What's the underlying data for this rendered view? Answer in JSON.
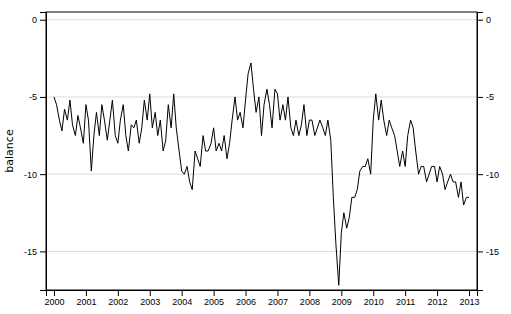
{
  "chart_data": {
    "type": "line",
    "ylabel": "balance",
    "color": "#000000",
    "grid": true,
    "xlim": [
      1999.75,
      2013.25
    ],
    "ylim": [
      -17.5,
      0.5
    ],
    "xticks": [
      2000,
      2001,
      2002,
      2003,
      2004,
      2005,
      2006,
      2007,
      2008,
      2009,
      2010,
      2011,
      2012,
      2013
    ],
    "yticks": [
      0,
      -5,
      -10,
      -15
    ],
    "x": [
      2000.0,
      2000.08,
      2000.17,
      2000.25,
      2000.33,
      2000.42,
      2000.5,
      2000.58,
      2000.67,
      2000.75,
      2000.83,
      2000.92,
      2001.0,
      2001.08,
      2001.17,
      2001.25,
      2001.33,
      2001.42,
      2001.5,
      2001.58,
      2001.67,
      2001.75,
      2001.83,
      2001.92,
      2002.0,
      2002.08,
      2002.17,
      2002.25,
      2002.33,
      2002.42,
      2002.5,
      2002.58,
      2002.67,
      2002.75,
      2002.83,
      2002.92,
      2003.0,
      2003.08,
      2003.17,
      2003.25,
      2003.33,
      2003.42,
      2003.5,
      2003.58,
      2003.67,
      2003.75,
      2003.83,
      2003.92,
      2004.0,
      2004.08,
      2004.17,
      2004.25,
      2004.33,
      2004.42,
      2004.5,
      2004.58,
      2004.67,
      2004.75,
      2004.83,
      2004.92,
      2005.0,
      2005.08,
      2005.17,
      2005.25,
      2005.33,
      2005.42,
      2005.5,
      2005.58,
      2005.67,
      2005.75,
      2005.83,
      2005.92,
      2006.0,
      2006.08,
      2006.17,
      2006.25,
      2006.33,
      2006.42,
      2006.5,
      2006.58,
      2006.67,
      2006.75,
      2006.83,
      2006.92,
      2007.0,
      2007.08,
      2007.17,
      2007.25,
      2007.33,
      2007.42,
      2007.5,
      2007.58,
      2007.67,
      2007.75,
      2007.83,
      2007.92,
      2008.0,
      2008.08,
      2008.17,
      2008.25,
      2008.33,
      2008.42,
      2008.5,
      2008.58,
      2008.67,
      2008.75,
      2008.83,
      2008.92,
      2009.0,
      2009.08,
      2009.17,
      2009.25,
      2009.33,
      2009.42,
      2009.5,
      2009.58,
      2009.67,
      2009.75,
      2009.83,
      2009.92,
      2010.0,
      2010.08,
      2010.17,
      2010.25,
      2010.33,
      2010.42,
      2010.5,
      2010.58,
      2010.67,
      2010.75,
      2010.83,
      2010.92,
      2011.0,
      2011.08,
      2011.17,
      2011.25,
      2011.33,
      2011.42,
      2011.5,
      2011.58,
      2011.67,
      2011.75,
      2011.83,
      2011.92,
      2012.0,
      2012.08,
      2012.17,
      2012.25,
      2012.33,
      2012.42,
      2012.5,
      2012.58,
      2012.67,
      2012.75,
      2012.83,
      2012.92,
      2013.0
    ],
    "values": [
      -5.0,
      -5.5,
      -6.5,
      -7.2,
      -5.8,
      -6.5,
      -5.2,
      -6.8,
      -7.5,
      -6.2,
      -7.0,
      -8.0,
      -5.5,
      -6.5,
      -9.8,
      -7.5,
      -6.0,
      -7.5,
      -5.5,
      -6.5,
      -7.8,
      -6.5,
      -5.2,
      -7.5,
      -8.0,
      -6.5,
      -5.5,
      -7.5,
      -8.5,
      -6.8,
      -7.0,
      -6.5,
      -8.0,
      -7.0,
      -5.2,
      -6.5,
      -4.8,
      -7.0,
      -6.0,
      -7.5,
      -6.5,
      -8.5,
      -7.8,
      -5.5,
      -7.0,
      -4.8,
      -7.0,
      -8.5,
      -9.8,
      -10.0,
      -9.5,
      -10.5,
      -11.0,
      -8.5,
      -9.0,
      -9.5,
      -7.5,
      -8.5,
      -8.5,
      -8.0,
      -7.0,
      -8.5,
      -8.0,
      -8.5,
      -7.5,
      -9.0,
      -8.0,
      -6.5,
      -5.0,
      -6.5,
      -6.0,
      -7.0,
      -5.2,
      -3.5,
      -2.8,
      -4.5,
      -6.0,
      -5.0,
      -7.5,
      -5.5,
      -4.5,
      -5.5,
      -7.0,
      -4.5,
      -4.8,
      -6.5,
      -5.5,
      -6.5,
      -5.0,
      -7.0,
      -7.5,
      -6.5,
      -7.5,
      -6.8,
      -5.5,
      -7.5,
      -6.5,
      -6.5,
      -7.5,
      -7.0,
      -6.5,
      -7.0,
      -7.5,
      -6.5,
      -7.8,
      -11.5,
      -14.5,
      -17.2,
      -13.8,
      -12.5,
      -13.5,
      -12.8,
      -11.5,
      -11.5,
      -11.0,
      -9.8,
      -9.5,
      -9.5,
      -9.0,
      -10.0,
      -6.5,
      -4.8,
      -6.5,
      -5.2,
      -6.5,
      -7.5,
      -6.5,
      -7.0,
      -7.5,
      -8.5,
      -9.5,
      -8.5,
      -9.5,
      -7.5,
      -6.5,
      -7.0,
      -8.5,
      -10.0,
      -9.5,
      -9.5,
      -10.5,
      -10.0,
      -9.5,
      -9.5,
      -10.5,
      -9.5,
      -10.0,
      -11.0,
      -10.5,
      -10.0,
      -10.5,
      -10.5,
      -11.5,
      -10.5,
      -12.0,
      -11.5,
      -11.5
    ]
  }
}
